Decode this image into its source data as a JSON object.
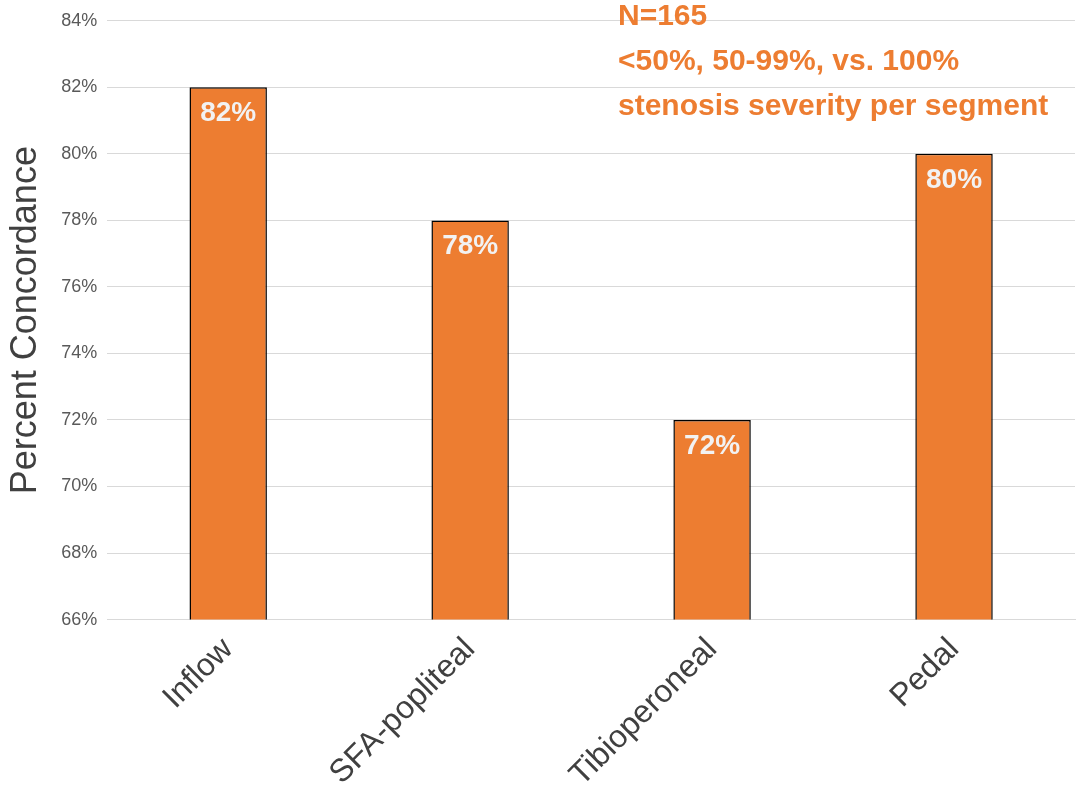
{
  "chart_data": {
    "type": "bar",
    "ylabel": "Percent Concordance",
    "categories": [
      "Inflow",
      "SFA-popliteal",
      "Tibioperoneal",
      "Pedal"
    ],
    "values": [
      82,
      78,
      72,
      80
    ],
    "color": "#ed7d31",
    "value_labels": [
      "82%",
      "78%",
      "72%",
      "80%"
    ],
    "ylim": [
      66,
      84
    ],
    "yticks": [
      {
        "value": 66,
        "label": "66%"
      },
      {
        "value": 68,
        "label": "68%"
      },
      {
        "value": 70,
        "label": "70%"
      },
      {
        "value": 72,
        "label": "72%"
      },
      {
        "value": 74,
        "label": "74%"
      },
      {
        "value": 76,
        "label": "76%"
      },
      {
        "value": 78,
        "label": "78%"
      },
      {
        "value": 80,
        "label": "80%"
      },
      {
        "value": 82,
        "label": "82%"
      },
      {
        "value": 84,
        "label": "84%"
      }
    ],
    "grid": "y",
    "annotations": [
      "N=165",
      "<50%, 50-99%, vs. 100%",
      "stenosis severity per segment"
    ]
  }
}
